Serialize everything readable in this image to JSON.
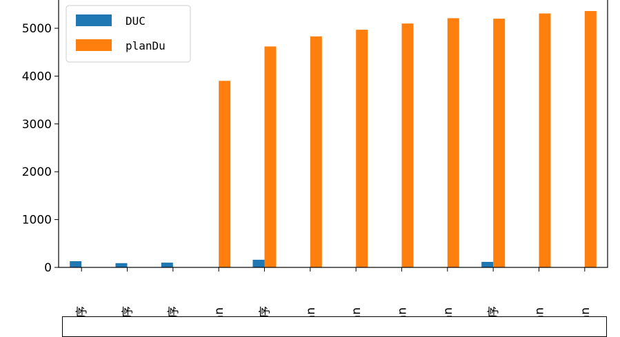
{
  "chart_data": {
    "type": "bar",
    "categories": [
      "程序",
      "程序",
      "程序",
      "nan",
      "程序",
      "nan",
      "nan",
      "nan",
      "nan",
      "程序",
      "nan",
      "nan"
    ],
    "series": [
      {
        "name": "DUC",
        "color": "#1f77b4",
        "values": [
          130,
          90,
          100,
          0,
          160,
          0,
          0,
          0,
          0,
          115,
          0,
          0
        ]
      },
      {
        "name": "planDu",
        "color": "#ff7f0e",
        "values": [
          0,
          0,
          0,
          3900,
          4620,
          4830,
          4970,
          5100,
          5210,
          5200,
          5310,
          5360
        ]
      }
    ],
    "yticks": [
      0,
      1000,
      2000,
      3000,
      4000,
      5000
    ],
    "ylim": [
      0,
      5450
    ],
    "legend_position": "top-left",
    "grid": false
  }
}
